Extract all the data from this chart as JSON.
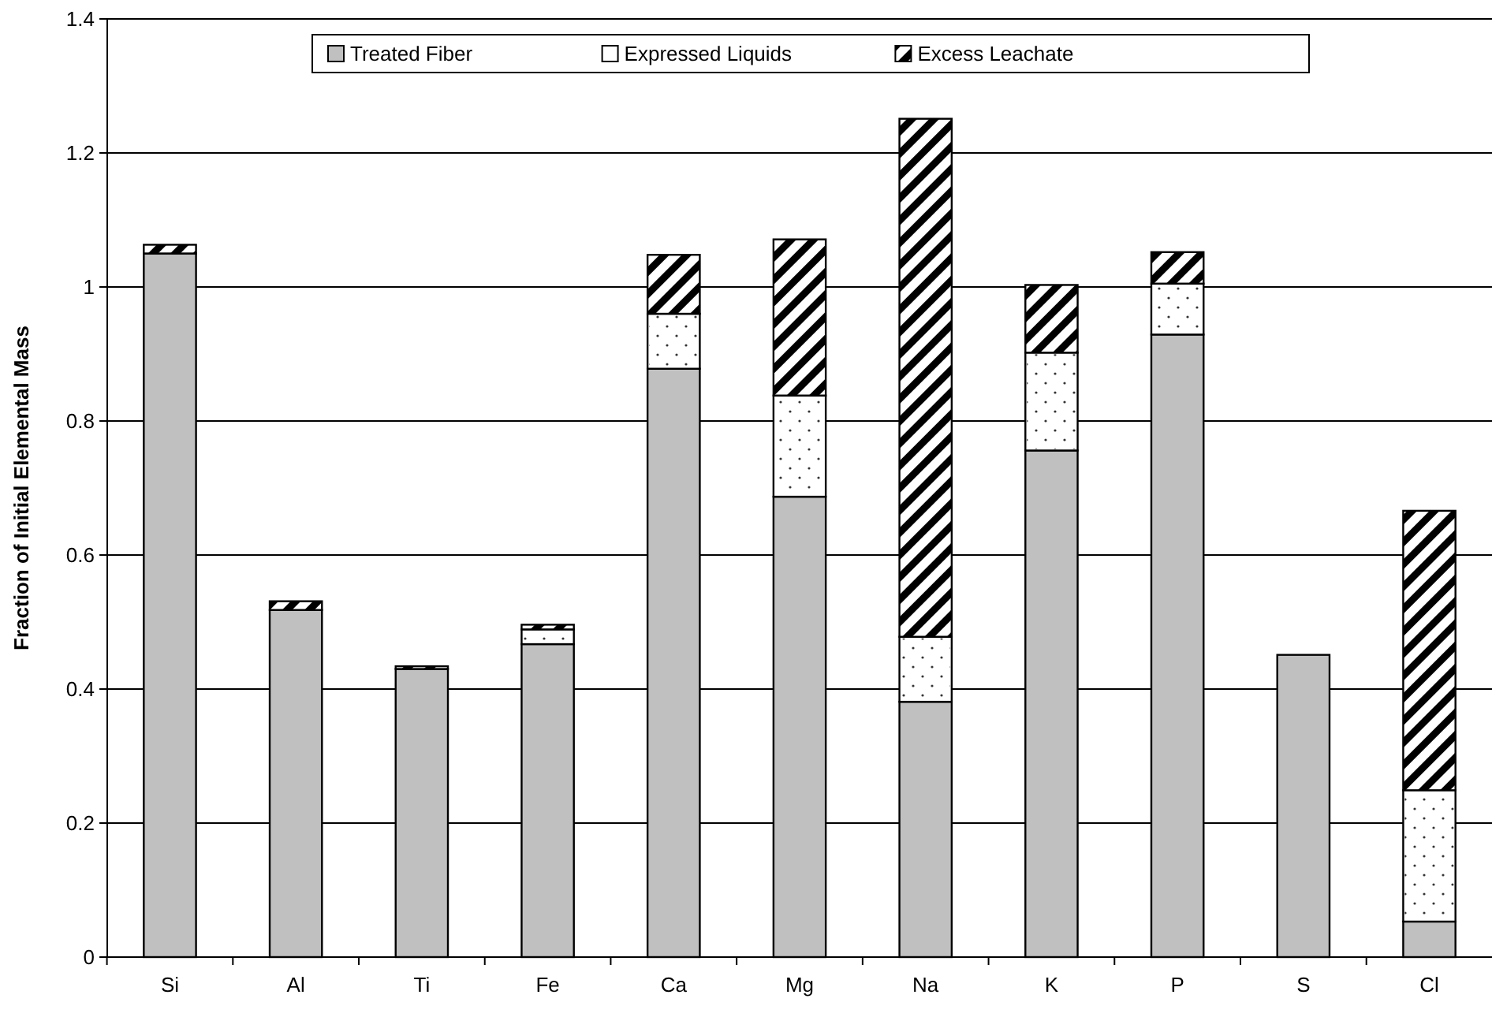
{
  "chart_data": {
    "type": "bar",
    "stacked": true,
    "ylabel": "Fraction of Initial Elemental Mass",
    "categories": [
      "Si",
      "Al",
      "Ti",
      "Fe",
      "Ca",
      "Mg",
      "Na",
      "K",
      "P",
      "S",
      "Cl"
    ],
    "series": [
      {
        "name": "Treated Fiber",
        "color": "#c0c0c0",
        "values": [
          1.05,
          0.518,
          0.43,
          0.467,
          0.878,
          0.687,
          0.381,
          0.756,
          0.929,
          0.451,
          0.053
        ]
      },
      {
        "name": "Expressed Liquids",
        "color": "#ffffff",
        "values": [
          0,
          0,
          0,
          0.022,
          0.082,
          0.151,
          0.097,
          0.146,
          0.076,
          0,
          0.196
        ]
      },
      {
        "name": "Excess Leachate",
        "color": "#000000",
        "values": [
          0.013,
          0.013,
          0.004,
          0.007,
          0.088,
          0.233,
          0.773,
          0.101,
          0.047,
          0,
          0.417
        ]
      }
    ],
    "ylim": [
      0,
      1.4
    ],
    "yticks": [
      0,
      0.2,
      0.4,
      0.6,
      0.8,
      1,
      1.2,
      1.4
    ],
    "grid": "y",
    "legend": "top"
  }
}
